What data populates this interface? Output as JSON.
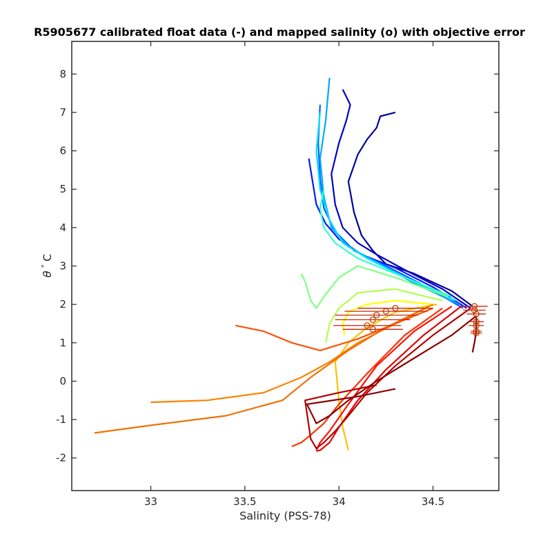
{
  "chart_data": {
    "type": "line",
    "title": "R5905677 calibrated float data (-) and mapped salinity (o) with objective error",
    "xlabel": "Salinity (PSS-78)",
    "ylabel_parts": {
      "symbol": "θ",
      "degree": "°",
      "unit": "C"
    },
    "xlim": [
      32.58,
      34.85
    ],
    "ylim": [
      -2.85,
      8.85
    ],
    "xticks": [
      33,
      33.5,
      34,
      34.5
    ],
    "xtick_labels": [
      "33",
      "33.5",
      "34",
      "34.5"
    ],
    "yticks": [
      -2,
      -1,
      0,
      1,
      2,
      3,
      4,
      5,
      6,
      7,
      8
    ],
    "ytick_labels": [
      "-2",
      "-1",
      "0",
      "1",
      "2",
      "3",
      "4",
      "5",
      "6",
      "7",
      "8"
    ],
    "grid": false,
    "colormap": [
      "#00008f",
      "#0000ff",
      "#0080ff",
      "#00ffff",
      "#80ff80",
      "#ffff00",
      "#ff8000",
      "#ff0000",
      "#800000"
    ],
    "series": [
      {
        "color": "#00009a",
        "x": [
          34.71,
          34.6,
          34.4,
          34.25,
          34.18,
          34.12,
          34.08,
          34.05,
          34.1,
          34.15,
          34.2,
          34.22,
          34.3
        ],
        "y": [
          1.95,
          2.35,
          2.8,
          3.05,
          3.4,
          3.8,
          4.4,
          5.2,
          5.9,
          6.3,
          6.6,
          6.9,
          7.0
        ]
      },
      {
        "color": "#0000c8",
        "x": [
          34.7,
          34.55,
          34.35,
          34.2,
          34.1,
          34.02,
          33.98,
          33.96,
          34.0,
          34.04,
          34.06,
          34.02
        ],
        "y": [
          1.9,
          2.4,
          2.9,
          3.3,
          3.6,
          4.0,
          4.6,
          5.4,
          6.2,
          6.8,
          7.2,
          7.6
        ]
      },
      {
        "color": "#0018ff",
        "x": [
          34.68,
          34.5,
          34.3,
          34.12,
          34.0,
          33.93,
          33.88,
          33.86,
          33.84
        ],
        "y": [
          1.9,
          2.45,
          2.95,
          3.3,
          3.7,
          4.1,
          4.6,
          5.2,
          5.8
        ]
      },
      {
        "color": "#0060ff",
        "x": [
          34.66,
          34.45,
          34.25,
          34.08,
          33.98,
          33.92,
          33.9,
          33.89,
          33.9
        ],
        "y": [
          1.9,
          2.5,
          3.0,
          3.4,
          3.9,
          4.5,
          5.3,
          6.2,
          7.2
        ]
      },
      {
        "color": "#00a8ff",
        "x": [
          34.64,
          34.4,
          34.2,
          34.05,
          33.96,
          33.92,
          33.9,
          33.93,
          33.95
        ],
        "y": [
          2.0,
          2.55,
          3.1,
          3.5,
          4.0,
          4.8,
          5.8,
          6.8,
          7.9
        ]
      },
      {
        "color": "#00e0ff",
        "x": [
          34.62,
          34.35,
          34.15,
          34.02,
          33.95,
          33.9,
          33.88,
          33.9
        ],
        "y": [
          2.1,
          2.7,
          3.2,
          3.6,
          4.2,
          5.0,
          6.0,
          7.0
        ]
      },
      {
        "color": "#30ffd0",
        "x": [
          34.6,
          34.3,
          34.1,
          33.98,
          33.92,
          33.9,
          33.92
        ],
        "y": [
          2.2,
          2.8,
          3.2,
          3.6,
          4.0,
          4.5,
          5.0
        ]
      },
      {
        "color": "#80ff80",
        "x": [
          34.58,
          34.3,
          34.1,
          34.0,
          33.92,
          33.88,
          33.85,
          33.82,
          33.8
        ],
        "y": [
          2.2,
          2.7,
          3.0,
          2.7,
          2.2,
          1.9,
          2.1,
          2.6,
          2.8
        ]
      },
      {
        "color": "#b0ff50",
        "x": [
          34.55,
          34.3,
          34.1,
          34.0,
          33.95,
          33.93
        ],
        "y": [
          2.1,
          2.4,
          2.3,
          1.9,
          1.5,
          1.0
        ]
      },
      {
        "color": "#ffff00",
        "x": [
          34.5,
          34.3,
          34.15,
          34.05,
          34.02,
          34.03
        ],
        "y": [
          2.0,
          2.1,
          2.0,
          1.8,
          1.5,
          1.2
        ]
      },
      {
        "color": "#ffc000",
        "x": [
          34.52,
          34.3,
          34.15,
          34.05,
          33.98,
          34.0,
          34.02,
          34.05
        ],
        "y": [
          2.0,
          1.8,
          1.4,
          1.0,
          0.5,
          -0.5,
          -1.2,
          -1.8
        ]
      },
      {
        "color": "#ff8000",
        "x": [
          34.5,
          34.3,
          34.1,
          33.95,
          33.8,
          33.6,
          33.3,
          33.0
        ],
        "y": [
          2.0,
          1.5,
          1.0,
          0.5,
          0.1,
          -0.3,
          -0.5,
          -0.55
        ]
      },
      {
        "color": "#f07000",
        "x": [
          34.48,
          34.25,
          34.05,
          33.85,
          33.7,
          33.4,
          33.0,
          32.7
        ],
        "y": [
          1.95,
          1.4,
          0.8,
          0.1,
          -0.5,
          -0.9,
          -1.15,
          -1.35
        ]
      },
      {
        "color": "#ff5000",
        "x": [
          34.5,
          34.3,
          34.1,
          33.9,
          33.75,
          33.6,
          33.45
        ],
        "y": [
          1.9,
          1.5,
          1.1,
          0.8,
          1.0,
          1.3,
          1.45
        ]
      },
      {
        "color": "#ff3000",
        "x": [
          34.55,
          34.35,
          34.15,
          34.0,
          33.92,
          33.85,
          33.8,
          33.75
        ],
        "y": [
          1.9,
          1.2,
          0.2,
          -0.6,
          -1.1,
          -1.4,
          -1.6,
          -1.7
        ]
      },
      {
        "color": "#ff1000",
        "x": [
          34.6,
          34.4,
          34.2,
          34.05,
          33.95,
          33.9,
          33.88
        ],
        "y": [
          1.95,
          1.3,
          0.4,
          -0.6,
          -1.3,
          -1.6,
          -1.8
        ]
      },
      {
        "color": "#e00000",
        "x": [
          34.65,
          34.45,
          34.25,
          34.1,
          34.0,
          33.95,
          33.9,
          33.88
        ],
        "y": [
          1.95,
          1.2,
          0.3,
          -0.5,
          -1.2,
          -1.6,
          -1.8,
          -1.82
        ]
      },
      {
        "color": "#b00000",
        "x": [
          34.7,
          34.5,
          34.3,
          34.15,
          34.05,
          33.98,
          33.92,
          33.88,
          33.85,
          33.82,
          34.0,
          34.2
        ],
        "y": [
          1.9,
          1.2,
          0.4,
          -0.3,
          -0.9,
          -1.3,
          -1.6,
          -1.75,
          -1.5,
          -0.5,
          -0.3,
          -0.1
        ]
      },
      {
        "color": "#8a0000",
        "x": [
          34.73,
          34.6,
          34.4,
          34.2,
          34.05,
          33.95,
          33.88,
          33.83,
          33.9,
          34.1,
          34.3
        ],
        "y": [
          1.7,
          1.2,
          0.6,
          0.0,
          -0.5,
          -0.9,
          -1.1,
          -0.6,
          -0.55,
          -0.4,
          -0.2
        ]
      },
      {
        "color": "#800000",
        "x": [
          34.73,
          34.73,
          34.72,
          34.71
        ],
        "y": [
          1.7,
          1.3,
          1.0,
          0.75
        ]
      }
    ],
    "mapped_points": [
      {
        "x": 34.72,
        "y": 1.95,
        "err": 0.07
      },
      {
        "x": 34.72,
        "y": 1.85,
        "err": 0.06
      },
      {
        "x": 34.73,
        "y": 1.75,
        "err": 0.05
      },
      {
        "x": 34.73,
        "y": 1.55,
        "err": 0.04
      },
      {
        "x": 34.73,
        "y": 1.45,
        "err": 0.04
      },
      {
        "x": 34.73,
        "y": 1.3,
        "err": 0.03
      },
      {
        "x": 34.73,
        "y": 1.25,
        "err": 0.03
      },
      {
        "x": 34.3,
        "y": 1.9,
        "err": 0.2
      },
      {
        "x": 34.25,
        "y": 1.82,
        "err": 0.22
      },
      {
        "x": 34.2,
        "y": 1.72,
        "err": 0.22
      },
      {
        "x": 34.18,
        "y": 1.6,
        "err": 0.2
      },
      {
        "x": 34.15,
        "y": 1.45,
        "err": 0.18
      },
      {
        "x": 34.18,
        "y": 1.35,
        "err": 0.16
      }
    ]
  }
}
